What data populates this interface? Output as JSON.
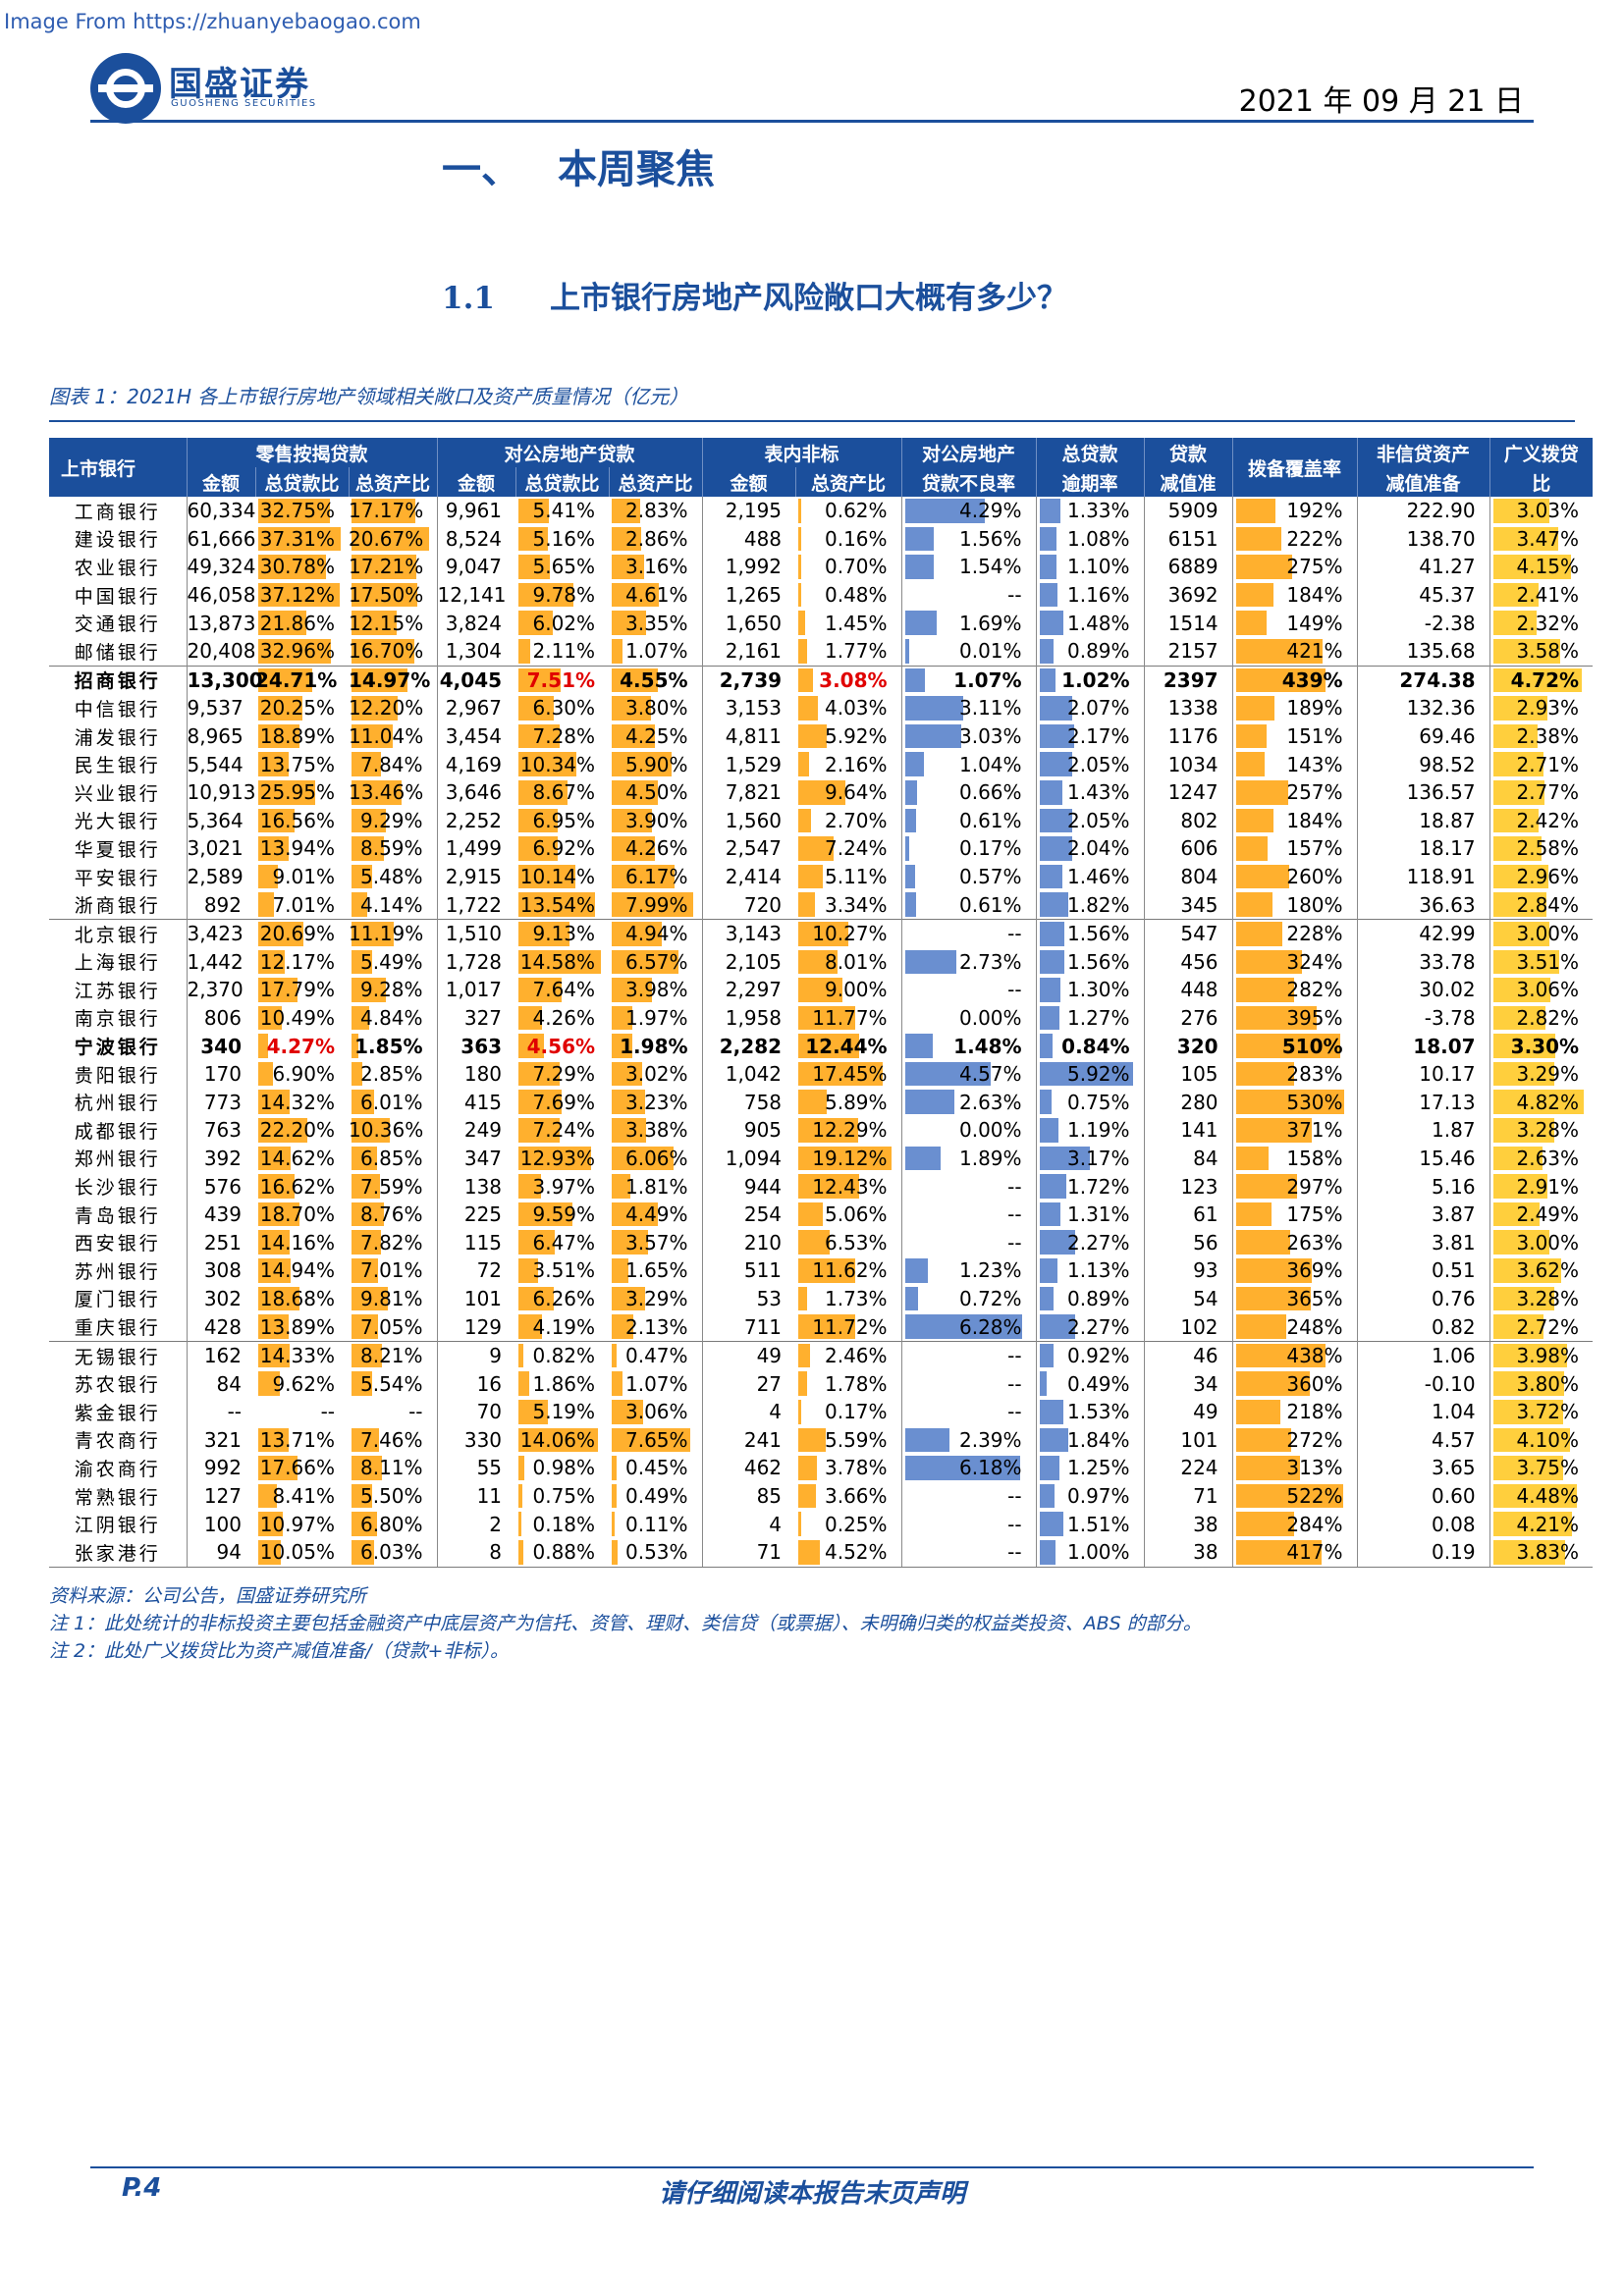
{
  "watermark": "Image From https://zhuanyebaogao.com",
  "brand": {
    "name": "国盛证券",
    "sub": "GUOSHENG SECURITIES"
  },
  "date": "2021 年 09 月 21 日",
  "section": {
    "num": "一、",
    "title": "本周聚焦"
  },
  "subsection": {
    "num": "1.1",
    "title": "上市银行房地产风险敞口大概有多少？"
  },
  "caption": "图表 1：2021H 各上市银行房地产领域相关敞口及资产质量情况（亿元）",
  "table": {
    "group_headers": [
      "上市银行",
      "零售按揭贷款",
      "对公房地产贷款",
      "表内非标",
      "对公房地产",
      "总贷款",
      "贷款",
      "拨备覆盖率",
      "非信贷资产",
      "广义拨贷"
    ],
    "sub_headers": [
      "金额",
      "总贷款比",
      "总资产比",
      "金额",
      "总贷款比",
      "总资产比",
      "金额",
      "总资产比",
      "贷款不良率",
      "逾期率",
      "减值准",
      "减值准备",
      "比"
    ],
    "colors": {
      "header": "#1b4f9c",
      "orange": "#ffb02e",
      "blue": "#6a8fd0",
      "yellow": "#ffcf3d",
      "red": "#e00000"
    },
    "rows": [
      {
        "bank": "工商银行",
        "v": [
          "60,334",
          "32.75%",
          "17.17%",
          "9,961",
          "5.41%",
          "2.83%",
          "2,195",
          "0.62%",
          "4.29%",
          "1.33%",
          "5909",
          "192%",
          "222.90",
          "3.03%"
        ]
      },
      {
        "bank": "建设银行",
        "v": [
          "61,666",
          "37.31%",
          "20.67%",
          "8,524",
          "5.16%",
          "2.86%",
          "488",
          "0.16%",
          "1.56%",
          "1.08%",
          "6151",
          "222%",
          "138.70",
          "3.47%"
        ]
      },
      {
        "bank": "农业银行",
        "v": [
          "49,324",
          "30.78%",
          "17.21%",
          "9,047",
          "5.65%",
          "3.16%",
          "1,992",
          "0.70%",
          "1.54%",
          "1.10%",
          "6889",
          "275%",
          "41.27",
          "4.15%"
        ]
      },
      {
        "bank": "中国银行",
        "v": [
          "46,058",
          "37.12%",
          "17.50%",
          "12,141",
          "9.78%",
          "4.61%",
          "1,265",
          "0.48%",
          "--",
          "1.16%",
          "3692",
          "184%",
          "45.37",
          "2.41%"
        ]
      },
      {
        "bank": "交通银行",
        "v": [
          "13,873",
          "21.86%",
          "12.15%",
          "3,824",
          "6.02%",
          "3.35%",
          "1,650",
          "1.45%",
          "1.69%",
          "1.48%",
          "1514",
          "149%",
          "-2.38",
          "2.32%"
        ]
      },
      {
        "bank": "邮储银行",
        "v": [
          "20,408",
          "32.96%",
          "16.70%",
          "1,304",
          "2.11%",
          "1.07%",
          "2,161",
          "1.77%",
          "0.01%",
          "0.89%",
          "2157",
          "421%",
          "135.68",
          "3.58%"
        ]
      },
      {
        "bank": "招商银行",
        "grp": true,
        "bold": true,
        "red": [
          4,
          7
        ],
        "v": [
          "13,300",
          "24.71%",
          "14.97%",
          "4,045",
          "7.51%",
          "4.55%",
          "2,739",
          "3.08%",
          "1.07%",
          "1.02%",
          "2397",
          "439%",
          "274.38",
          "4.72%"
        ]
      },
      {
        "bank": "中信银行",
        "v": [
          "9,537",
          "20.25%",
          "12.20%",
          "2,967",
          "6.30%",
          "3.80%",
          "3,153",
          "4.03%",
          "3.11%",
          "2.07%",
          "1338",
          "189%",
          "132.36",
          "2.93%"
        ]
      },
      {
        "bank": "浦发银行",
        "v": [
          "8,965",
          "18.89%",
          "11.04%",
          "3,454",
          "7.28%",
          "4.25%",
          "4,811",
          "5.92%",
          "3.03%",
          "2.17%",
          "1176",
          "151%",
          "69.46",
          "2.38%"
        ]
      },
      {
        "bank": "民生银行",
        "v": [
          "5,544",
          "13.75%",
          "7.84%",
          "4,169",
          "10.34%",
          "5.90%",
          "1,529",
          "2.16%",
          "1.04%",
          "2.05%",
          "1034",
          "143%",
          "98.52",
          "2.71%"
        ]
      },
      {
        "bank": "兴业银行",
        "v": [
          "10,913",
          "25.95%",
          "13.46%",
          "3,646",
          "8.67%",
          "4.50%",
          "7,821",
          "9.64%",
          "0.66%",
          "1.43%",
          "1247",
          "257%",
          "136.57",
          "2.77%"
        ]
      },
      {
        "bank": "光大银行",
        "v": [
          "5,364",
          "16.56%",
          "9.29%",
          "2,252",
          "6.95%",
          "3.90%",
          "1,560",
          "2.70%",
          "0.61%",
          "2.05%",
          "802",
          "184%",
          "18.87",
          "2.42%"
        ]
      },
      {
        "bank": "华夏银行",
        "v": [
          "3,021",
          "13.94%",
          "8.59%",
          "1,499",
          "6.92%",
          "4.26%",
          "2,547",
          "7.24%",
          "0.17%",
          "2.04%",
          "606",
          "157%",
          "18.17",
          "2.58%"
        ]
      },
      {
        "bank": "平安银行",
        "v": [
          "2,589",
          "9.01%",
          "5.48%",
          "2,915",
          "10.14%",
          "6.17%",
          "2,414",
          "5.11%",
          "0.57%",
          "1.46%",
          "804",
          "260%",
          "118.91",
          "2.96%"
        ]
      },
      {
        "bank": "浙商银行",
        "v": [
          "892",
          "7.01%",
          "4.14%",
          "1,722",
          "13.54%",
          "7.99%",
          "720",
          "3.34%",
          "0.61%",
          "1.82%",
          "345",
          "180%",
          "36.63",
          "2.84%"
        ]
      },
      {
        "bank": "北京银行",
        "grp": true,
        "v": [
          "3,423",
          "20.69%",
          "11.19%",
          "1,510",
          "9.13%",
          "4.94%",
          "3,143",
          "10.27%",
          "--",
          "1.56%",
          "547",
          "228%",
          "42.99",
          "3.00%"
        ]
      },
      {
        "bank": "上海银行",
        "v": [
          "1,442",
          "12.17%",
          "5.49%",
          "1,728",
          "14.58%",
          "6.57%",
          "2,105",
          "8.01%",
          "2.73%",
          "1.56%",
          "456",
          "324%",
          "33.78",
          "3.51%"
        ]
      },
      {
        "bank": "江苏银行",
        "v": [
          "2,370",
          "17.79%",
          "9.28%",
          "1,017",
          "7.64%",
          "3.98%",
          "2,297",
          "9.00%",
          "--",
          "1.30%",
          "448",
          "282%",
          "30.02",
          "3.06%"
        ]
      },
      {
        "bank": "南京银行",
        "v": [
          "806",
          "10.49%",
          "4.84%",
          "327",
          "4.26%",
          "1.97%",
          "1,958",
          "11.77%",
          "0.00%",
          "1.27%",
          "276",
          "395%",
          "-3.78",
          "2.82%"
        ]
      },
      {
        "bank": "宁波银行",
        "bold": true,
        "red": [
          1,
          4
        ],
        "v": [
          "340",
          "4.27%",
          "1.85%",
          "363",
          "4.56%",
          "1.98%",
          "2,282",
          "12.44%",
          "1.48%",
          "0.84%",
          "320",
          "510%",
          "18.07",
          "3.30%"
        ]
      },
      {
        "bank": "贵阳银行",
        "v": [
          "170",
          "6.90%",
          "2.85%",
          "180",
          "7.29%",
          "3.02%",
          "1,042",
          "17.45%",
          "4.57%",
          "5.92%",
          "105",
          "283%",
          "10.17",
          "3.29%"
        ]
      },
      {
        "bank": "杭州银行",
        "v": [
          "773",
          "14.32%",
          "6.01%",
          "415",
          "7.69%",
          "3.23%",
          "758",
          "5.89%",
          "2.63%",
          "0.75%",
          "280",
          "530%",
          "17.13",
          "4.82%"
        ]
      },
      {
        "bank": "成都银行",
        "v": [
          "763",
          "22.20%",
          "10.36%",
          "249",
          "7.24%",
          "3.38%",
          "905",
          "12.29%",
          "0.00%",
          "1.19%",
          "141",
          "371%",
          "1.87",
          "3.28%"
        ]
      },
      {
        "bank": "郑州银行",
        "v": [
          "392",
          "14.62%",
          "6.85%",
          "347",
          "12.93%",
          "6.06%",
          "1,094",
          "19.12%",
          "1.89%",
          "3.17%",
          "84",
          "158%",
          "15.46",
          "2.63%"
        ]
      },
      {
        "bank": "长沙银行",
        "v": [
          "576",
          "16.62%",
          "7.59%",
          "138",
          "3.97%",
          "1.81%",
          "944",
          "12.43%",
          "--",
          "1.72%",
          "123",
          "297%",
          "5.16",
          "2.91%"
        ]
      },
      {
        "bank": "青岛银行",
        "v": [
          "439",
          "18.70%",
          "8.76%",
          "225",
          "9.59%",
          "4.49%",
          "254",
          "5.06%",
          "--",
          "1.31%",
          "61",
          "175%",
          "3.87",
          "2.49%"
        ]
      },
      {
        "bank": "西安银行",
        "v": [
          "251",
          "14.16%",
          "7.82%",
          "115",
          "6.47%",
          "3.57%",
          "210",
          "6.53%",
          "--",
          "2.27%",
          "56",
          "263%",
          "3.81",
          "3.00%"
        ]
      },
      {
        "bank": "苏州银行",
        "v": [
          "308",
          "14.94%",
          "7.01%",
          "72",
          "3.51%",
          "1.65%",
          "511",
          "11.62%",
          "1.23%",
          "1.13%",
          "93",
          "369%",
          "0.51",
          "3.62%"
        ]
      },
      {
        "bank": "厦门银行",
        "v": [
          "302",
          "18.68%",
          "9.81%",
          "101",
          "6.26%",
          "3.29%",
          "53",
          "1.73%",
          "0.72%",
          "0.89%",
          "54",
          "365%",
          "0.76",
          "3.28%"
        ]
      },
      {
        "bank": "重庆银行",
        "v": [
          "428",
          "13.89%",
          "7.05%",
          "129",
          "4.19%",
          "2.13%",
          "711",
          "11.72%",
          "6.28%",
          "2.27%",
          "102",
          "248%",
          "0.82",
          "2.72%"
        ]
      },
      {
        "bank": "无锡银行",
        "grp": true,
        "v": [
          "162",
          "14.33%",
          "8.21%",
          "9",
          "0.82%",
          "0.47%",
          "49",
          "2.46%",
          "--",
          "0.92%",
          "46",
          "438%",
          "1.06",
          "3.98%"
        ]
      },
      {
        "bank": "苏农银行",
        "v": [
          "84",
          "9.62%",
          "5.54%",
          "16",
          "1.86%",
          "1.07%",
          "27",
          "1.78%",
          "--",
          "0.49%",
          "34",
          "360%",
          "-0.10",
          "3.80%"
        ]
      },
      {
        "bank": "紫金银行",
        "v": [
          "--",
          "--",
          "--",
          "70",
          "5.19%",
          "3.06%",
          "4",
          "0.17%",
          "--",
          "1.53%",
          "49",
          "218%",
          "1.04",
          "3.72%"
        ]
      },
      {
        "bank": "青农商行",
        "v": [
          "321",
          "13.71%",
          "7.46%",
          "330",
          "14.06%",
          "7.65%",
          "241",
          "5.59%",
          "2.39%",
          "1.84%",
          "101",
          "272%",
          "4.57",
          "4.10%"
        ]
      },
      {
        "bank": "渝农商行",
        "v": [
          "992",
          "17.66%",
          "8.11%",
          "55",
          "0.98%",
          "0.45%",
          "462",
          "3.78%",
          "6.18%",
          "1.25%",
          "224",
          "313%",
          "3.65",
          "3.75%"
        ]
      },
      {
        "bank": "常熟银行",
        "v": [
          "127",
          "8.41%",
          "5.50%",
          "11",
          "0.75%",
          "0.49%",
          "85",
          "3.66%",
          "--",
          "0.97%",
          "71",
          "522%",
          "0.60",
          "4.48%"
        ]
      },
      {
        "bank": "江阴银行",
        "v": [
          "100",
          "10.97%",
          "6.80%",
          "2",
          "0.18%",
          "0.11%",
          "4",
          "0.25%",
          "--",
          "1.51%",
          "38",
          "284%",
          "0.08",
          "4.21%"
        ]
      },
      {
        "bank": "张家港行",
        "v": [
          "94",
          "10.05%",
          "6.03%",
          "8",
          "0.88%",
          "0.53%",
          "71",
          "4.52%",
          "--",
          "1.00%",
          "38",
          "417%",
          "0.19",
          "3.83%"
        ]
      }
    ]
  },
  "notes": [
    "资料来源：公司公告，国盛证券研究所",
    "注 1：此处统计的非标投资主要包括金融资产中底层资产为信托、资管、理财、类信贷（或票据）、未明确归类的权益类投资、ABS 的部分。",
    "注 2：此处广义拨贷比为资产减值准备/（贷款+非标）。"
  ],
  "footer": {
    "page": "P.4",
    "disclaimer": "请仔细阅读本报告末页声明"
  }
}
